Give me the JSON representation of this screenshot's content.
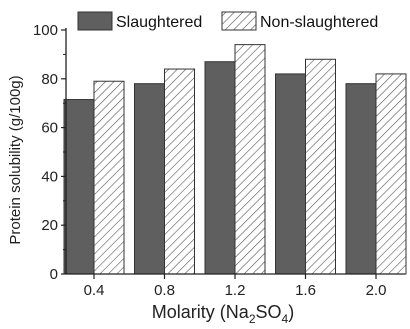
{
  "chart_data": {
    "type": "bar",
    "categories": [
      "0.4",
      "0.8",
      "1.2",
      "1.6",
      "2.0"
    ],
    "series": [
      {
        "name": "Slaughtered",
        "values": [
          71.5,
          78,
          87,
          82,
          78
        ],
        "color": "#5f5f5f",
        "fill": "solid"
      },
      {
        "name": "Non-slaughtered",
        "values": [
          79,
          84,
          94,
          88,
          82
        ],
        "color": "#ffffff",
        "fill": "hatched"
      }
    ],
    "title": "",
    "xlabel": {
      "main": "Molarity (Na",
      "sub1": "2",
      "mid": "SO",
      "sub2": "4",
      "end": ")"
    },
    "ylabel": "Protein solubility (g/100g)",
    "ylim": [
      0,
      100
    ],
    "yticks": [
      "0",
      "20",
      "40",
      "60",
      "80",
      "100"
    ],
    "legend_position": "top",
    "grid": false
  }
}
